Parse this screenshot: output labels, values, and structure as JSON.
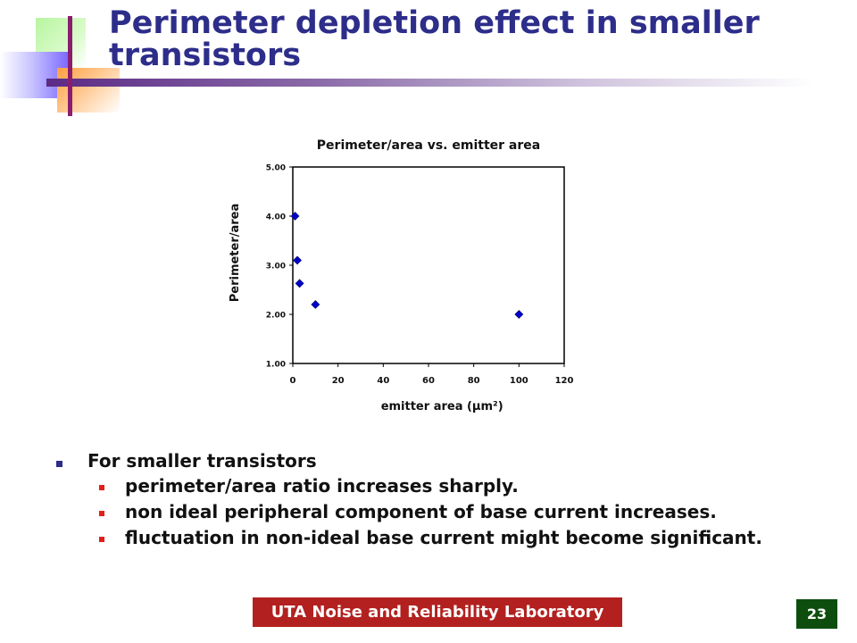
{
  "slide": {
    "title": "Perimeter depletion effect in smaller transistors",
    "footer_label": "UTA Noise and Reliability Laboratory",
    "slide_number": "23",
    "colors": {
      "title": "#2d2d8a",
      "footer_bg": "#b2211f",
      "slide_number_bg": "#0d4d0d",
      "bullet_l1": "#2d2d8a",
      "bullet_l2": "#e0201b",
      "marker": "#0000cc"
    }
  },
  "bullets": {
    "main": "For smaller transistors",
    "sub": [
      "perimeter/area ratio increases sharply.",
      "non ideal peripheral component of base current increases.",
      "fluctuation in non-ideal base current might become significant."
    ]
  },
  "chart_data": {
    "type": "scatter",
    "title": "Perimeter/area vs. emitter area",
    "xlabel": "emitter area (µm²)",
    "ylabel": "Perimeter/area",
    "xlim": [
      0,
      120
    ],
    "ylim": [
      1.0,
      5.0
    ],
    "xticks": [
      "0",
      "20",
      "40",
      "60",
      "80",
      "100",
      "120"
    ],
    "yticks": [
      "1.00",
      "2.00",
      "3.00",
      "4.00",
      "5.00"
    ],
    "grid": false,
    "legend": "none",
    "marker": "diamond",
    "series": [
      {
        "points": [
          {
            "x": 1,
            "y": 4.0
          },
          {
            "x": 2,
            "y": 3.1
          },
          {
            "x": 3,
            "y": 2.63
          },
          {
            "x": 10,
            "y": 2.2
          },
          {
            "x": 100,
            "y": 2.0
          }
        ]
      }
    ]
  }
}
